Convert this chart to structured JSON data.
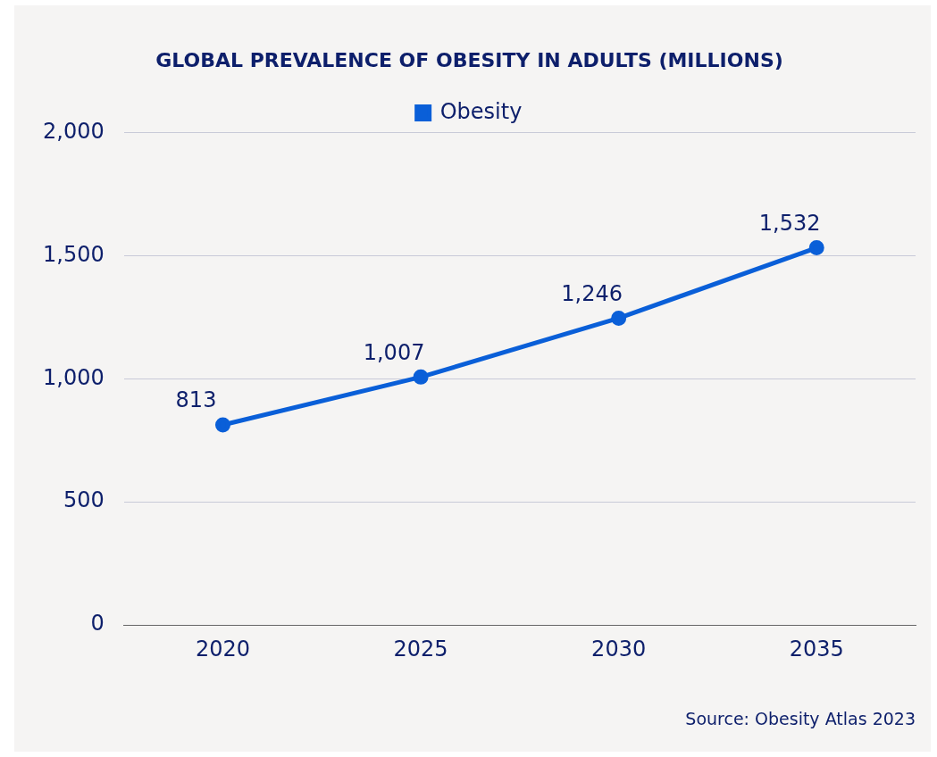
{
  "chart_data": {
    "type": "line",
    "title": "GLOBAL PREVALENCE OF OBESITY IN ADULTS (MILLIONS)",
    "categories": [
      "2020",
      "2025",
      "2030",
      "2035"
    ],
    "series": [
      {
        "name": "Obesity",
        "color": "#0a5fd8",
        "values": [
          813,
          1007,
          1246,
          1532
        ],
        "value_labels": [
          "813",
          "1,007",
          "1,246",
          "1,532"
        ]
      }
    ],
    "ylim": [
      0,
      2000
    ],
    "yticks": [
      0,
      500,
      {
        "value": 1000,
        "label": "1,000"
      },
      {
        "value": 1500,
        "label": "1,500"
      },
      {
        "value": 2000,
        "label": "2,000"
      }
    ],
    "grid": "y",
    "legend": "top",
    "marker": "circle",
    "line_style": "solid",
    "annotations": [
      "Source: Obesity Atlas 2023"
    ]
  }
}
